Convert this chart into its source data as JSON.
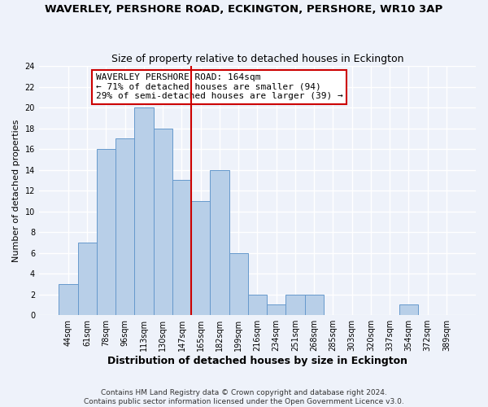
{
  "title": "WAVERLEY, PERSHORE ROAD, ECKINGTON, PERSHORE, WR10 3AP",
  "subtitle": "Size of property relative to detached houses in Eckington",
  "xlabel": "Distribution of detached houses by size in Eckington",
  "ylabel": "Number of detached properties",
  "bar_labels": [
    "44sqm",
    "61sqm",
    "78sqm",
    "96sqm",
    "113sqm",
    "130sqm",
    "147sqm",
    "165sqm",
    "182sqm",
    "199sqm",
    "216sqm",
    "234sqm",
    "251sqm",
    "268sqm",
    "285sqm",
    "303sqm",
    "320sqm",
    "337sqm",
    "354sqm",
    "372sqm",
    "389sqm"
  ],
  "bar_values": [
    3,
    7,
    16,
    17,
    20,
    18,
    13,
    11,
    14,
    6,
    2,
    1,
    2,
    2,
    0,
    0,
    0,
    0,
    1,
    0,
    0
  ],
  "bar_color": "#b8cfe8",
  "bar_edge_color": "#6699cc",
  "vline_color": "#cc0000",
  "vline_index": 7,
  "ylim": [
    0,
    24
  ],
  "yticks": [
    0,
    2,
    4,
    6,
    8,
    10,
    12,
    14,
    16,
    18,
    20,
    22,
    24
  ],
  "annotation_title": "WAVERLEY PERSHORE ROAD: 164sqm",
  "annotation_line1": "← 71% of detached houses are smaller (94)",
  "annotation_line2": "29% of semi-detached houses are larger (39) →",
  "annotation_box_color": "#ffffff",
  "annotation_box_edge": "#cc0000",
  "footer_line1": "Contains HM Land Registry data © Crown copyright and database right 2024.",
  "footer_line2": "Contains public sector information licensed under the Open Government Licence v3.0.",
  "background_color": "#eef2fa",
  "grid_color": "#ffffff",
  "title_fontsize": 9.5,
  "subtitle_fontsize": 9,
  "xlabel_fontsize": 9,
  "ylabel_fontsize": 8,
  "tick_fontsize": 7,
  "annotation_fontsize": 8,
  "footer_fontsize": 6.5
}
